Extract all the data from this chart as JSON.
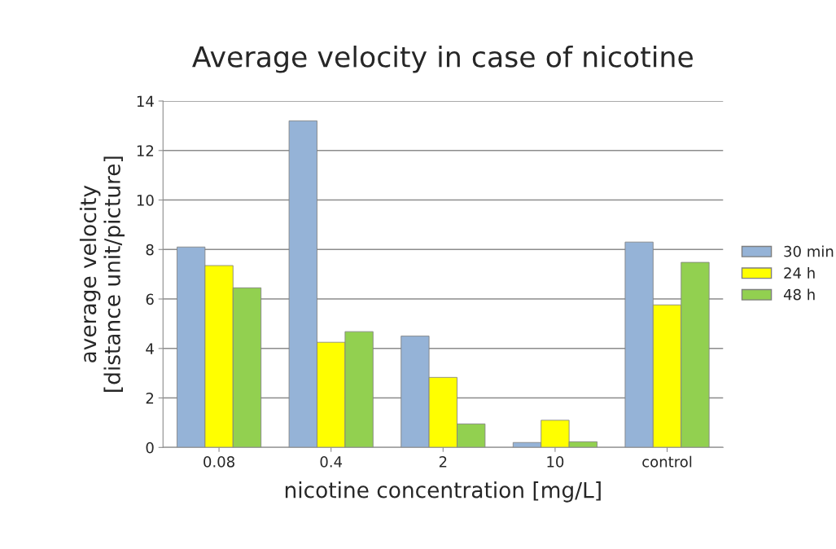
{
  "chart_data": {
    "type": "bar",
    "title": "Average velocity in case of nicotine",
    "xlabel": "nicotine concentration [mg/L]",
    "ylabel": "average velocity\n[distance unit/picture]",
    "categories": [
      "0.08",
      "0.4",
      "2",
      "10",
      "control"
    ],
    "series": [
      {
        "name": "30 min",
        "color": "#95b3d7",
        "values": [
          8.1,
          13.2,
          4.5,
          0.2,
          8.3
        ]
      },
      {
        "name": "24 h",
        "color": "#ffff00",
        "values": [
          7.35,
          4.25,
          2.83,
          1.1,
          5.76
        ]
      },
      {
        "name": "48 h",
        "color": "#92d050",
        "values": [
          6.45,
          4.68,
          0.95,
          0.23,
          7.48
        ]
      }
    ],
    "ylim": [
      0,
      14
    ],
    "yticks": [
      0,
      2,
      4,
      6,
      8,
      10,
      12,
      14
    ],
    "grid": "y",
    "legend": "right"
  }
}
